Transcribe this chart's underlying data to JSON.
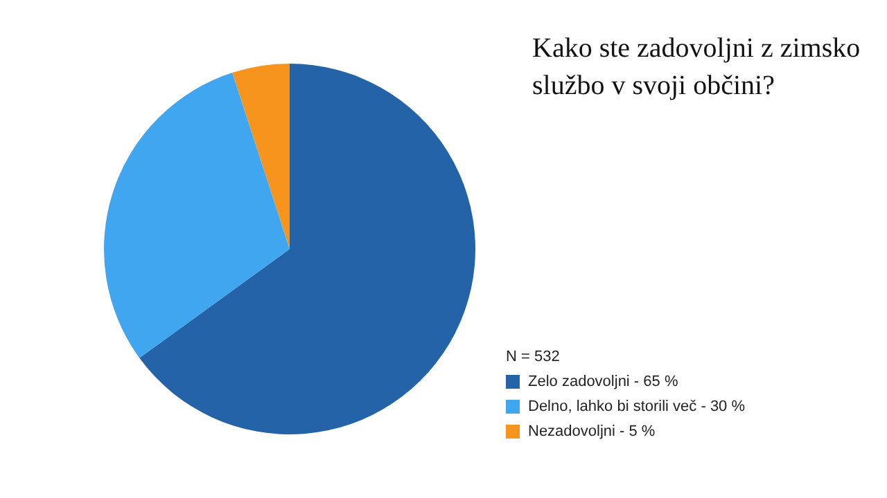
{
  "chart_data": {
    "type": "pie",
    "title": "Kako ste zadovoljni z zimsko službo v svoji občini?",
    "legend_title": "N = 532",
    "categories": [
      "Zelo zadovoljni - 65 %",
      "Delno, lahko bi storili več - 30 %",
      "Nezadovoljni - 5 %"
    ],
    "values": [
      65,
      30,
      5
    ],
    "colors": [
      "#2563a8",
      "#40a6ef",
      "#f7941d"
    ],
    "legend": "bottom right"
  }
}
